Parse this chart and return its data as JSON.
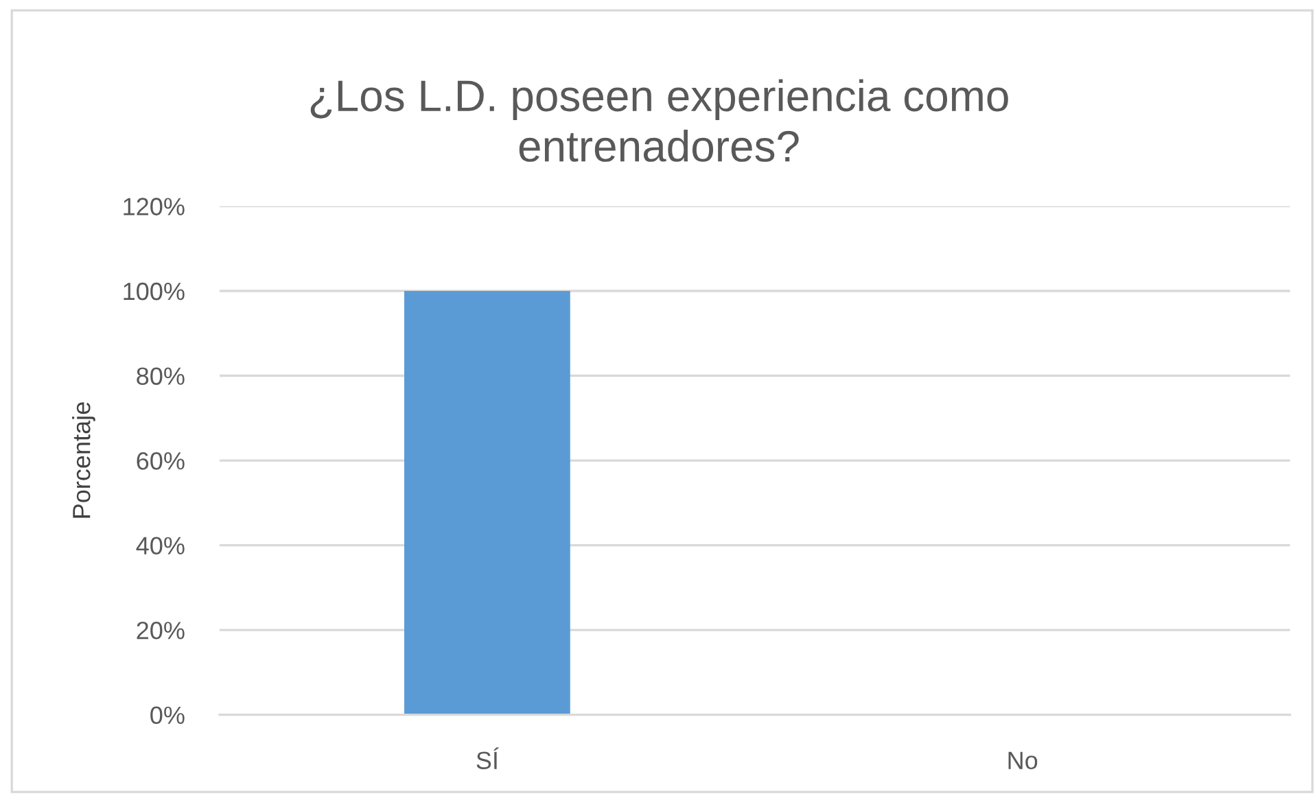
{
  "chart_data": {
    "type": "bar",
    "title": "¿Los L.D. poseen experiencia como entrenadores?",
    "ylabel": "Porcentaje",
    "categories": [
      "SÍ",
      "No"
    ],
    "values": [
      100,
      0
    ],
    "color": "#5b9bd5",
    "ylim": [
      0,
      120
    ],
    "yticks": [
      {
        "value": 0,
        "label": "0%"
      },
      {
        "value": 20,
        "label": "20%"
      },
      {
        "value": 40,
        "label": "40%"
      },
      {
        "value": 60,
        "label": "60%"
      },
      {
        "value": 80,
        "label": "80%"
      },
      {
        "value": 100,
        "label": "100%"
      },
      {
        "value": 120,
        "label": "120%"
      }
    ],
    "grid": "y"
  }
}
